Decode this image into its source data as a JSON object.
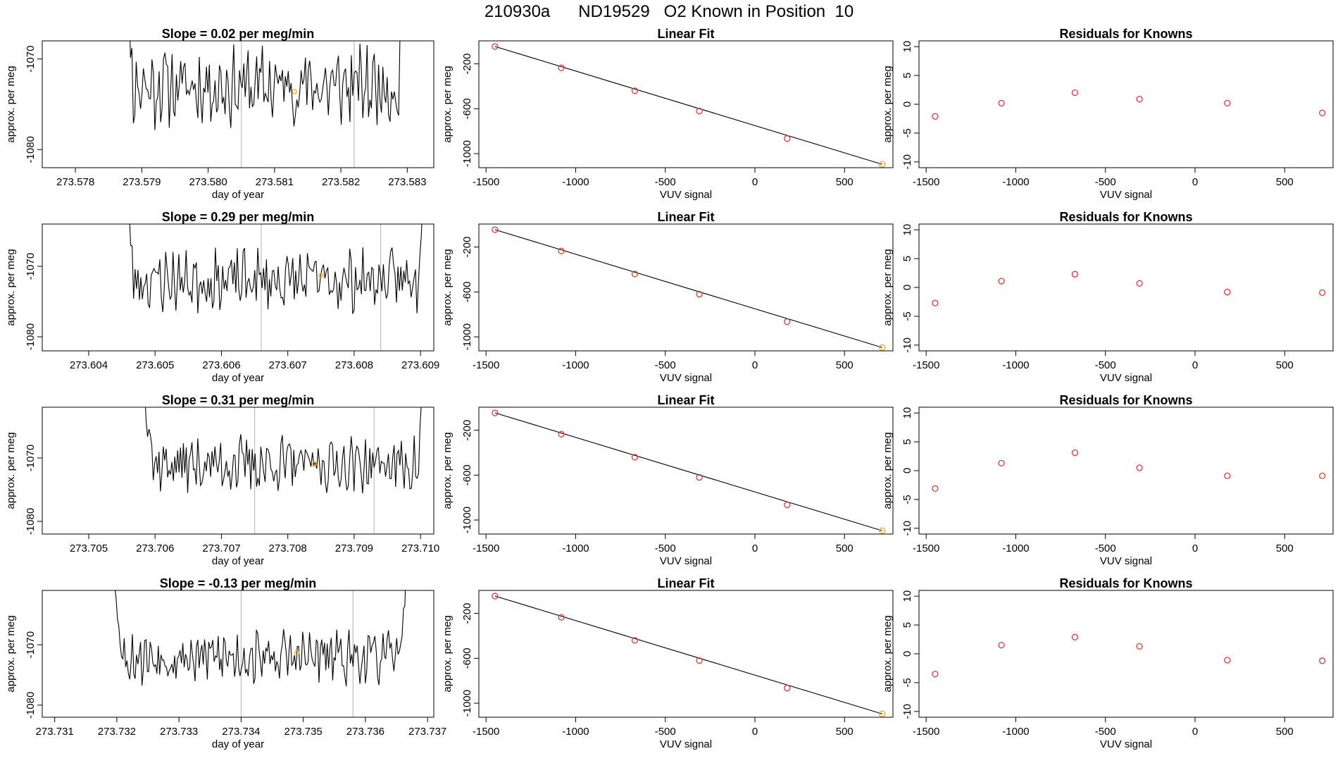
{
  "page": {
    "title": "210930a      ND19529   O2 Known in Position  10"
  },
  "colors": {
    "trace": "#000000",
    "marker_vline": "#bebebe",
    "known_points": "#d63b3b",
    "last_point": "#f5a623",
    "fit_line": "#000000"
  },
  "chart_data": [
    {
      "type": "line",
      "title": "Slope =  0.02  per meg/min",
      "xlabel": "day of year",
      "ylabel": "approx. per meg",
      "xlim": [
        273.5775,
        273.5834
      ],
      "ylim": [
        -1082,
        -1068
      ],
      "xticks": [
        "273.578",
        "273.579",
        "273.580",
        "273.581",
        "273.582",
        "273.583"
      ],
      "xtick_values": [
        273.578,
        273.579,
        273.58,
        273.581,
        273.582,
        273.583
      ],
      "yticks": [
        "-1070",
        "-1080"
      ],
      "ytick_values": [
        -1070,
        -1080
      ],
      "vlines": [
        273.5805,
        273.5822
      ],
      "highlight_point": [
        273.5813,
        -1073.6
      ],
      "trace": {
        "x_start": 273.5787,
        "x_end": 273.583,
        "n": 200,
        "baseline": -1073,
        "seed": 11
      }
    },
    {
      "type": "line",
      "title": "Linear Fit",
      "xlabel": "VUV signal",
      "ylabel": "approx. per meg",
      "xlim": [
        -1540,
        770
      ],
      "ylim": [
        -1125,
        5
      ],
      "xticks": [
        "-1500",
        "-1000",
        "-500",
        "0",
        "500"
      ],
      "xtick_values": [
        -1500,
        -1000,
        -500,
        0,
        500
      ],
      "yticks": [
        "-200",
        "-600",
        "-1000"
      ],
      "ytick_values": [
        -200,
        -600,
        -1000
      ],
      "series": [
        {
          "x": [
            -1450,
            -1080,
            -670,
            -310,
            180,
            710
          ],
          "y": [
            -45,
            -235,
            -440,
            -620,
            -865,
            -1095
          ]
        }
      ],
      "fit_line": [
        [
          -1450,
          -45
        ],
        [
          710,
          -1095
        ]
      ]
    },
    {
      "type": "scatter",
      "title": "Residuals for Knowns",
      "xlabel": "VUV signal",
      "ylabel": "approx. per meg",
      "xlim": [
        -1540,
        770
      ],
      "ylim": [
        -11,
        11
      ],
      "xticks": [
        "-1500",
        "-1000",
        "-500",
        "0",
        "500"
      ],
      "xtick_values": [
        -1500,
        -1000,
        -500,
        0,
        500
      ],
      "yticks": [
        "10",
        "5",
        "0",
        "-5",
        "-10"
      ],
      "ytick_values": [
        10,
        5,
        0,
        -5,
        -10
      ],
      "series": [
        {
          "x": [
            -1450,
            -1080,
            -670,
            -310,
            180,
            710
          ],
          "y": [
            -2.1,
            0.2,
            2.0,
            0.9,
            0.2,
            -1.5
          ]
        }
      ]
    },
    {
      "type": "line",
      "title": "Slope =  0.29  per meg/min",
      "xlabel": "day of year",
      "ylabel": "approx. per meg",
      "xlim": [
        273.6033,
        273.6092
      ],
      "ylim": [
        -1082,
        -1064
      ],
      "xticks": [
        "273.604",
        "273.605",
        "273.606",
        "273.607",
        "273.608",
        "273.609"
      ],
      "xtick_values": [
        273.604,
        273.605,
        273.606,
        273.607,
        273.608,
        273.609
      ],
      "yticks": [
        "-1070",
        "-1080"
      ],
      "ytick_values": [
        -1070,
        -1080
      ],
      "vlines": [
        273.6066,
        273.6084
      ],
      "highlight_point": [
        273.6075,
        -1071.3
      ],
      "trace": {
        "x_start": 273.6045,
        "x_end": 273.6091,
        "n": 210,
        "baseline": -1072,
        "seed": 23
      }
    },
    {
      "type": "line",
      "title": "Linear Fit",
      "xlabel": "VUV signal",
      "ylabel": "approx. per meg",
      "xlim": [
        -1540,
        770
      ],
      "ylim": [
        -1125,
        5
      ],
      "xticks": [
        "-1500",
        "-1000",
        "-500",
        "0",
        "500"
      ],
      "xtick_values": [
        -1500,
        -1000,
        -500,
        0,
        500
      ],
      "yticks": [
        "-200",
        "-600",
        "-1000"
      ],
      "ytick_values": [
        -200,
        -600,
        -1000
      ],
      "series": [
        {
          "x": [
            -1450,
            -1080,
            -670,
            -310,
            180,
            710
          ],
          "y": [
            -45,
            -235,
            -440,
            -620,
            -865,
            -1095
          ]
        }
      ],
      "fit_line": [
        [
          -1450,
          -45
        ],
        [
          710,
          -1095
        ]
      ]
    },
    {
      "type": "scatter",
      "title": "Residuals for Knowns",
      "xlabel": "VUV signal",
      "ylabel": "approx. per meg",
      "xlim": [
        -1540,
        770
      ],
      "ylim": [
        -11,
        11
      ],
      "xticks": [
        "-1500",
        "-1000",
        "-500",
        "0",
        "500"
      ],
      "xtick_values": [
        -1500,
        -1000,
        -500,
        0,
        500
      ],
      "yticks": [
        "10",
        "5",
        "0",
        "-5",
        "-10"
      ],
      "ytick_values": [
        10,
        5,
        0,
        -5,
        -10
      ],
      "series": [
        {
          "x": [
            -1450,
            -1080,
            -670,
            -310,
            180,
            710
          ],
          "y": [
            -2.7,
            1.1,
            2.3,
            0.7,
            -0.8,
            -0.9
          ]
        }
      ]
    },
    {
      "type": "line",
      "title": "Slope =  0.31  per meg/min",
      "xlabel": "day of year",
      "ylabel": "approx. per meg",
      "xlim": [
        273.7043,
        273.7102
      ],
      "ylim": [
        -1082,
        -1062
      ],
      "xticks": [
        "273.705",
        "273.706",
        "273.707",
        "273.708",
        "273.709",
        "273.710"
      ],
      "xtick_values": [
        273.705,
        273.706,
        273.707,
        273.708,
        273.709,
        273.71
      ],
      "yticks": [
        "-1070",
        "-1080"
      ],
      "ytick_values": [
        -1070,
        -1080
      ],
      "vlines": [
        273.7075,
        273.7093
      ],
      "highlight_point": [
        273.7084,
        -1071.0
      ],
      "trace": {
        "x_start": 273.7058,
        "x_end": 273.7101,
        "n": 200,
        "baseline": -1071,
        "seed": 37
      }
    },
    {
      "type": "line",
      "title": "Linear Fit",
      "xlabel": "VUV signal",
      "ylabel": "approx. per meg",
      "xlim": [
        -1540,
        770
      ],
      "ylim": [
        -1125,
        5
      ],
      "xticks": [
        "-1500",
        "-1000",
        "-500",
        "0",
        "500"
      ],
      "xtick_values": [
        -1500,
        -1000,
        -500,
        0,
        500
      ],
      "yticks": [
        "-200",
        "-600",
        "-1000"
      ],
      "ytick_values": [
        -200,
        -600,
        -1000
      ],
      "series": [
        {
          "x": [
            -1450,
            -1080,
            -670,
            -310,
            180,
            710
          ],
          "y": [
            -45,
            -235,
            -440,
            -620,
            -865,
            -1095
          ]
        }
      ],
      "fit_line": [
        [
          -1450,
          -45
        ],
        [
          710,
          -1095
        ]
      ]
    },
    {
      "type": "scatter",
      "title": "Residuals for Knowns",
      "xlabel": "VUV signal",
      "ylabel": "approx. per meg",
      "xlim": [
        -1540,
        770
      ],
      "ylim": [
        -11,
        11
      ],
      "xticks": [
        "-1500",
        "-1000",
        "-500",
        "0",
        "500"
      ],
      "xtick_values": [
        -1500,
        -1000,
        -500,
        0,
        500
      ],
      "yticks": [
        "10",
        "5",
        "0",
        "-5",
        "-10"
      ],
      "ytick_values": [
        10,
        5,
        0,
        -5,
        -10
      ],
      "series": [
        {
          "x": [
            -1450,
            -1080,
            -670,
            -310,
            180,
            710
          ],
          "y": [
            -3.1,
            1.3,
            3.1,
            0.5,
            -0.9,
            -0.9
          ]
        }
      ]
    },
    {
      "type": "line",
      "title": "Slope =  -0.13  per meg/min",
      "xlabel": "day of year",
      "ylabel": "approx. per meg",
      "xlim": [
        273.7308,
        273.7371
      ],
      "ylim": [
        -1082,
        -1061
      ],
      "xticks": [
        "273.731",
        "273.732",
        "273.733",
        "273.734",
        "273.735",
        "273.736",
        "273.737"
      ],
      "xtick_values": [
        273.731,
        273.732,
        273.733,
        273.734,
        273.735,
        273.736,
        273.737
      ],
      "yticks": [
        "-1070",
        "-1080"
      ],
      "ytick_values": [
        -1070,
        -1080
      ],
      "vlines": [
        273.734,
        273.7358
      ],
      "highlight_point": [
        273.7349,
        -1071.3
      ],
      "trace": {
        "x_start": 273.7319,
        "x_end": 273.7367,
        "n": 220,
        "baseline": -1072,
        "seed": 53
      }
    },
    {
      "type": "line",
      "title": "Linear Fit",
      "xlabel": "VUV signal",
      "ylabel": "approx. per meg",
      "xlim": [
        -1540,
        770
      ],
      "ylim": [
        -1125,
        5
      ],
      "xticks": [
        "-1500",
        "-1000",
        "-500",
        "0",
        "500"
      ],
      "xtick_values": [
        -1500,
        -1000,
        -500,
        0,
        500
      ],
      "yticks": [
        "-200",
        "-600",
        "-1000"
      ],
      "ytick_values": [
        -200,
        -600,
        -1000
      ],
      "series": [
        {
          "x": [
            -1450,
            -1080,
            -670,
            -310,
            180,
            710
          ],
          "y": [
            -45,
            -235,
            -440,
            -620,
            -865,
            -1095
          ]
        }
      ],
      "fit_line": [
        [
          -1450,
          -45
        ],
        [
          710,
          -1095
        ]
      ]
    },
    {
      "type": "scatter",
      "title": "Residuals for Knowns",
      "xlabel": "VUV signal",
      "ylabel": "approx. per meg",
      "xlim": [
        -1540,
        770
      ],
      "ylim": [
        -11,
        11
      ],
      "xticks": [
        "-1500",
        "-1000",
        "-500",
        "0",
        "500"
      ],
      "xtick_values": [
        -1500,
        -1000,
        -500,
        0,
        500
      ],
      "yticks": [
        "10",
        "5",
        "0",
        "-5",
        "-10"
      ],
      "ytick_values": [
        10,
        5,
        0,
        -5,
        -10
      ],
      "series": [
        {
          "x": [
            -1450,
            -1080,
            -670,
            -310,
            180,
            710
          ],
          "y": [
            -3.5,
            1.5,
            2.9,
            1.3,
            -1.1,
            -1.2
          ]
        }
      ]
    }
  ]
}
